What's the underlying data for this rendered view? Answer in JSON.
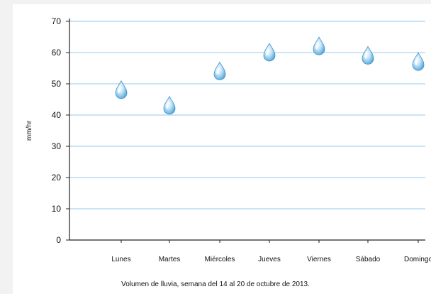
{
  "caption": "Volumen de lluvia, semana del 14 al 20 de octubre de 2013.",
  "chart_data": {
    "type": "scatter",
    "marker": "water-drop",
    "categories": [
      "Lunes",
      "Martes",
      "Miércoles",
      "Jueves",
      "Viernes",
      "Sábado",
      "Domingo"
    ],
    "values": [
      48,
      43,
      54,
      60,
      62,
      59,
      57
    ],
    "ylabel": "mm/hr",
    "xlabel": "",
    "ylim": [
      0,
      70
    ],
    "yticks": [
      0,
      10,
      20,
      30,
      40,
      50,
      60,
      70
    ],
    "grid": true,
    "colors": {
      "grid": "#b9dcf2",
      "axis": "#222222",
      "drop": "#7fc0e8",
      "drop_dark": "#3f93c9"
    }
  }
}
